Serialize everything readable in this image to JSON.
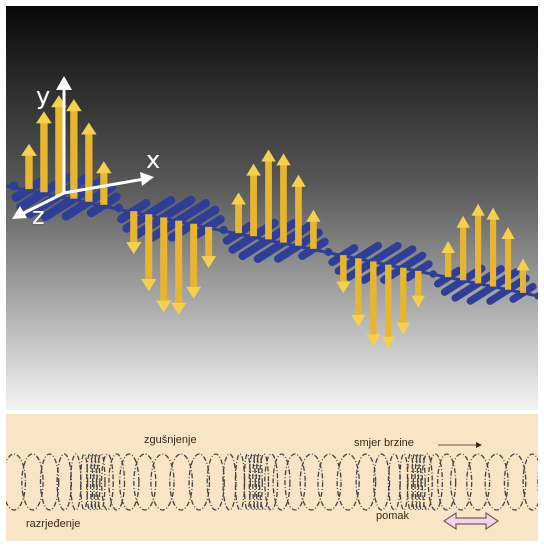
{
  "wave_panel": {
    "axes": {
      "y_label": "y",
      "x_label": "x",
      "z_label": "z"
    },
    "colors": {
      "background_top": "#080808",
      "background_bottom": "#f4f4f4",
      "electric_field": "#e8b530",
      "magnetic_field": "#2f3f98",
      "axis": "#ffffff"
    },
    "cycles_shown": 2.5,
    "vectors_per_half_cycle": 7
  },
  "spring_panel": {
    "labels": {
      "compression": "zgušnjenje",
      "rarefaction": "razrjeđenje",
      "velocity_direction": "smjer brzine",
      "displacement": "pomak"
    },
    "colors": {
      "background": "#f9e4c6",
      "coil": "#444444",
      "arrow_fill": "#f3d4e8",
      "arrow_stroke": "#7a5a5a"
    },
    "coil_count": 48
  }
}
